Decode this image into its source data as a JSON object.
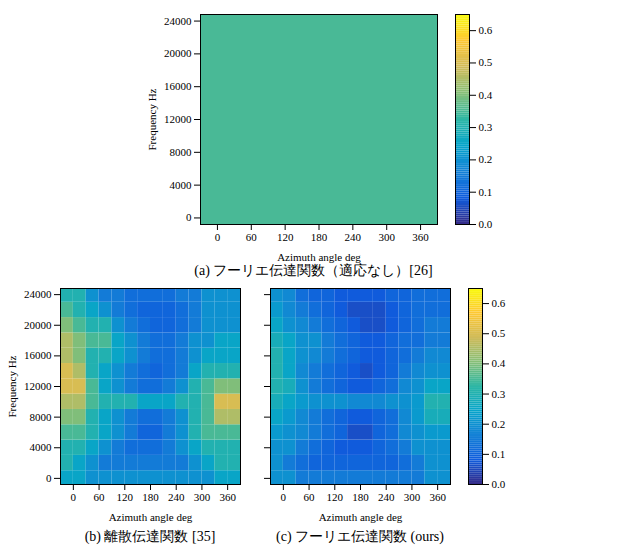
{
  "chart_data": [
    {
      "type": "heatmap",
      "title": "(a) フーリエ伝達関数（適応なし）[26]",
      "xlabel": "Azimuth angle deg",
      "ylabel": "Frequency Hz",
      "xlim": [
        -30,
        390
      ],
      "ylim": [
        -800,
        24800
      ],
      "xticks": [
        0,
        60,
        120,
        180,
        240,
        300,
        360
      ],
      "yticks": [
        0,
        4000,
        8000,
        12000,
        16000,
        20000,
        24000
      ],
      "azimuth_edges": [
        -30,
        390
      ],
      "frequency_edges": [
        -800,
        24800
      ],
      "values": [
        [
          0.35
        ]
      ],
      "clim": [
        0,
        0.65
      ],
      "colorbar_ticks": [
        {
          "value": 0,
          "label": "0.0"
        },
        {
          "value": 0.1,
          "label": "0.1"
        },
        {
          "value": 0.2,
          "label": "0.2"
        },
        {
          "value": 0.3,
          "label": "0.3"
        },
        {
          "value": 0.4,
          "label": "0.4"
        },
        {
          "value": 0.5,
          "label": "0.5"
        },
        {
          "value": 0.6,
          "label": "0.6"
        }
      ]
    },
    {
      "type": "heatmap",
      "title": "(b) 離散伝達関数 [35]",
      "xlabel": "Azimuth angle deg",
      "ylabel": "Frequency Hz",
      "xlim": [
        -30,
        390
      ],
      "ylim": [
        -800,
        24800
      ],
      "xticks": [
        0,
        60,
        120,
        180,
        240,
        300,
        360
      ],
      "yticks": [
        0,
        4000,
        8000,
        12000,
        16000,
        20000,
        24000
      ],
      "azimuth_edges": [
        -30,
        0,
        30,
        60,
        90,
        120,
        150,
        180,
        210,
        240,
        270,
        300,
        330,
        360,
        390
      ],
      "frequency_edges": [
        -800,
        1000,
        3000,
        5000,
        7000,
        9000,
        11000,
        13000,
        15000,
        17000,
        19000,
        21000,
        23000,
        24800
      ],
      "values": [
        [
          0.25,
          0.25,
          0.2,
          0.2,
          0.2,
          0.2,
          0.2,
          0.2,
          0.2,
          0.2,
          0.2,
          0.2,
          0.25,
          0.25
        ],
        [
          0.3,
          0.25,
          0.2,
          0.15,
          0.15,
          0.15,
          0.15,
          0.15,
          0.15,
          0.15,
          0.2,
          0.25,
          0.3,
          0.3
        ],
        [
          0.3,
          0.3,
          0.25,
          0.2,
          0.15,
          0.12,
          0.12,
          0.12,
          0.15,
          0.2,
          0.25,
          0.3,
          0.3,
          0.3
        ],
        [
          0.35,
          0.35,
          0.3,
          0.25,
          0.2,
          0.15,
          0.1,
          0.1,
          0.15,
          0.2,
          0.3,
          0.35,
          0.35,
          0.35
        ],
        [
          0.4,
          0.4,
          0.3,
          0.25,
          0.2,
          0.15,
          0.12,
          0.12,
          0.15,
          0.2,
          0.3,
          0.35,
          0.45,
          0.45
        ],
        [
          0.45,
          0.45,
          0.35,
          0.3,
          0.3,
          0.3,
          0.25,
          0.25,
          0.25,
          0.3,
          0.3,
          0.35,
          0.5,
          0.5
        ],
        [
          0.5,
          0.5,
          0.35,
          0.25,
          0.2,
          0.15,
          0.12,
          0.12,
          0.15,
          0.2,
          0.3,
          0.35,
          0.4,
          0.4
        ],
        [
          0.5,
          0.45,
          0.3,
          0.25,
          0.2,
          0.15,
          0.12,
          0.1,
          0.12,
          0.15,
          0.25,
          0.3,
          0.3,
          0.3
        ],
        [
          0.45,
          0.4,
          0.3,
          0.3,
          0.25,
          0.2,
          0.15,
          0.12,
          0.12,
          0.15,
          0.2,
          0.25,
          0.25,
          0.25
        ],
        [
          0.45,
          0.4,
          0.35,
          0.35,
          0.25,
          0.2,
          0.15,
          0.12,
          0.12,
          0.15,
          0.2,
          0.2,
          0.25,
          0.25
        ],
        [
          0.4,
          0.35,
          0.3,
          0.3,
          0.2,
          0.15,
          0.12,
          0.1,
          0.1,
          0.12,
          0.15,
          0.2,
          0.2,
          0.2
        ],
        [
          0.35,
          0.3,
          0.25,
          0.2,
          0.15,
          0.12,
          0.1,
          0.1,
          0.1,
          0.12,
          0.15,
          0.2,
          0.2,
          0.2
        ],
        [
          0.3,
          0.3,
          0.2,
          0.15,
          0.15,
          0.12,
          0.12,
          0.12,
          0.12,
          0.15,
          0.15,
          0.2,
          0.2,
          0.2
        ]
      ],
      "clim": [
        0,
        0.65
      ]
    },
    {
      "type": "heatmap",
      "title": "(c) フーリエ伝達関数 (ours)",
      "xlabel": "Azimuth angle deg",
      "xlim": [
        -30,
        390
      ],
      "ylim": [
        -800,
        24800
      ],
      "xticks": [
        0,
        60,
        120,
        180,
        240,
        300,
        360
      ],
      "yticks": [
        0,
        4000,
        8000,
        12000,
        16000,
        20000,
        24000
      ],
      "tick_labels": "x",
      "azimuth_edges": [
        -30,
        0,
        30,
        60,
        90,
        120,
        150,
        180,
        210,
        240,
        270,
        300,
        330,
        360,
        390
      ],
      "frequency_edges": [
        -800,
        1000,
        3000,
        5000,
        7000,
        9000,
        11000,
        13000,
        15000,
        17000,
        19000,
        21000,
        23000,
        24800
      ],
      "values": [
        [
          0.2,
          0.2,
          0.15,
          0.15,
          0.15,
          0.15,
          0.15,
          0.15,
          0.15,
          0.15,
          0.15,
          0.15,
          0.2,
          0.2
        ],
        [
          0.2,
          0.15,
          0.12,
          0.1,
          0.1,
          0.1,
          0.1,
          0.1,
          0.1,
          0.1,
          0.12,
          0.15,
          0.2,
          0.2
        ],
        [
          0.2,
          0.2,
          0.15,
          0.12,
          0.1,
          0.08,
          0.08,
          0.08,
          0.1,
          0.12,
          0.15,
          0.2,
          0.2,
          0.2
        ],
        [
          0.22,
          0.2,
          0.18,
          0.15,
          0.12,
          0.1,
          0.06,
          0.06,
          0.1,
          0.12,
          0.18,
          0.2,
          0.22,
          0.22
        ],
        [
          0.25,
          0.22,
          0.18,
          0.15,
          0.12,
          0.1,
          0.08,
          0.08,
          0.1,
          0.12,
          0.18,
          0.22,
          0.28,
          0.28
        ],
        [
          0.28,
          0.25,
          0.22,
          0.2,
          0.2,
          0.2,
          0.18,
          0.18,
          0.18,
          0.2,
          0.2,
          0.22,
          0.3,
          0.3
        ],
        [
          0.3,
          0.28,
          0.2,
          0.15,
          0.12,
          0.1,
          0.08,
          0.08,
          0.1,
          0.12,
          0.18,
          0.2,
          0.25,
          0.25
        ],
        [
          0.3,
          0.25,
          0.18,
          0.15,
          0.12,
          0.1,
          0.08,
          0.06,
          0.08,
          0.1,
          0.15,
          0.18,
          0.2,
          0.2
        ],
        [
          0.3,
          0.25,
          0.2,
          0.18,
          0.15,
          0.12,
          0.1,
          0.08,
          0.08,
          0.1,
          0.12,
          0.15,
          0.18,
          0.18
        ],
        [
          0.28,
          0.25,
          0.2,
          0.2,
          0.15,
          0.12,
          0.1,
          0.08,
          0.08,
          0.1,
          0.12,
          0.12,
          0.15,
          0.15
        ],
        [
          0.25,
          0.2,
          0.18,
          0.15,
          0.12,
          0.1,
          0.08,
          0.06,
          0.06,
          0.08,
          0.1,
          0.12,
          0.15,
          0.15
        ],
        [
          0.22,
          0.18,
          0.15,
          0.12,
          0.1,
          0.08,
          0.06,
          0.06,
          0.06,
          0.08,
          0.1,
          0.12,
          0.12,
          0.12
        ],
        [
          0.2,
          0.18,
          0.12,
          0.1,
          0.1,
          0.08,
          0.08,
          0.08,
          0.08,
          0.1,
          0.1,
          0.12,
          0.12,
          0.12
        ]
      ],
      "clim": [
        0,
        0.65
      ],
      "colorbar_ticks": [
        {
          "value": 0,
          "label": "0.0"
        },
        {
          "value": 0.1,
          "label": "0.1"
        },
        {
          "value": 0.2,
          "label": "0.2"
        },
        {
          "value": 0.3,
          "label": "0.3"
        },
        {
          "value": 0.4,
          "label": "0.4"
        },
        {
          "value": 0.5,
          "label": "0.5"
        },
        {
          "value": 0.6,
          "label": "0.6"
        }
      ]
    }
  ]
}
